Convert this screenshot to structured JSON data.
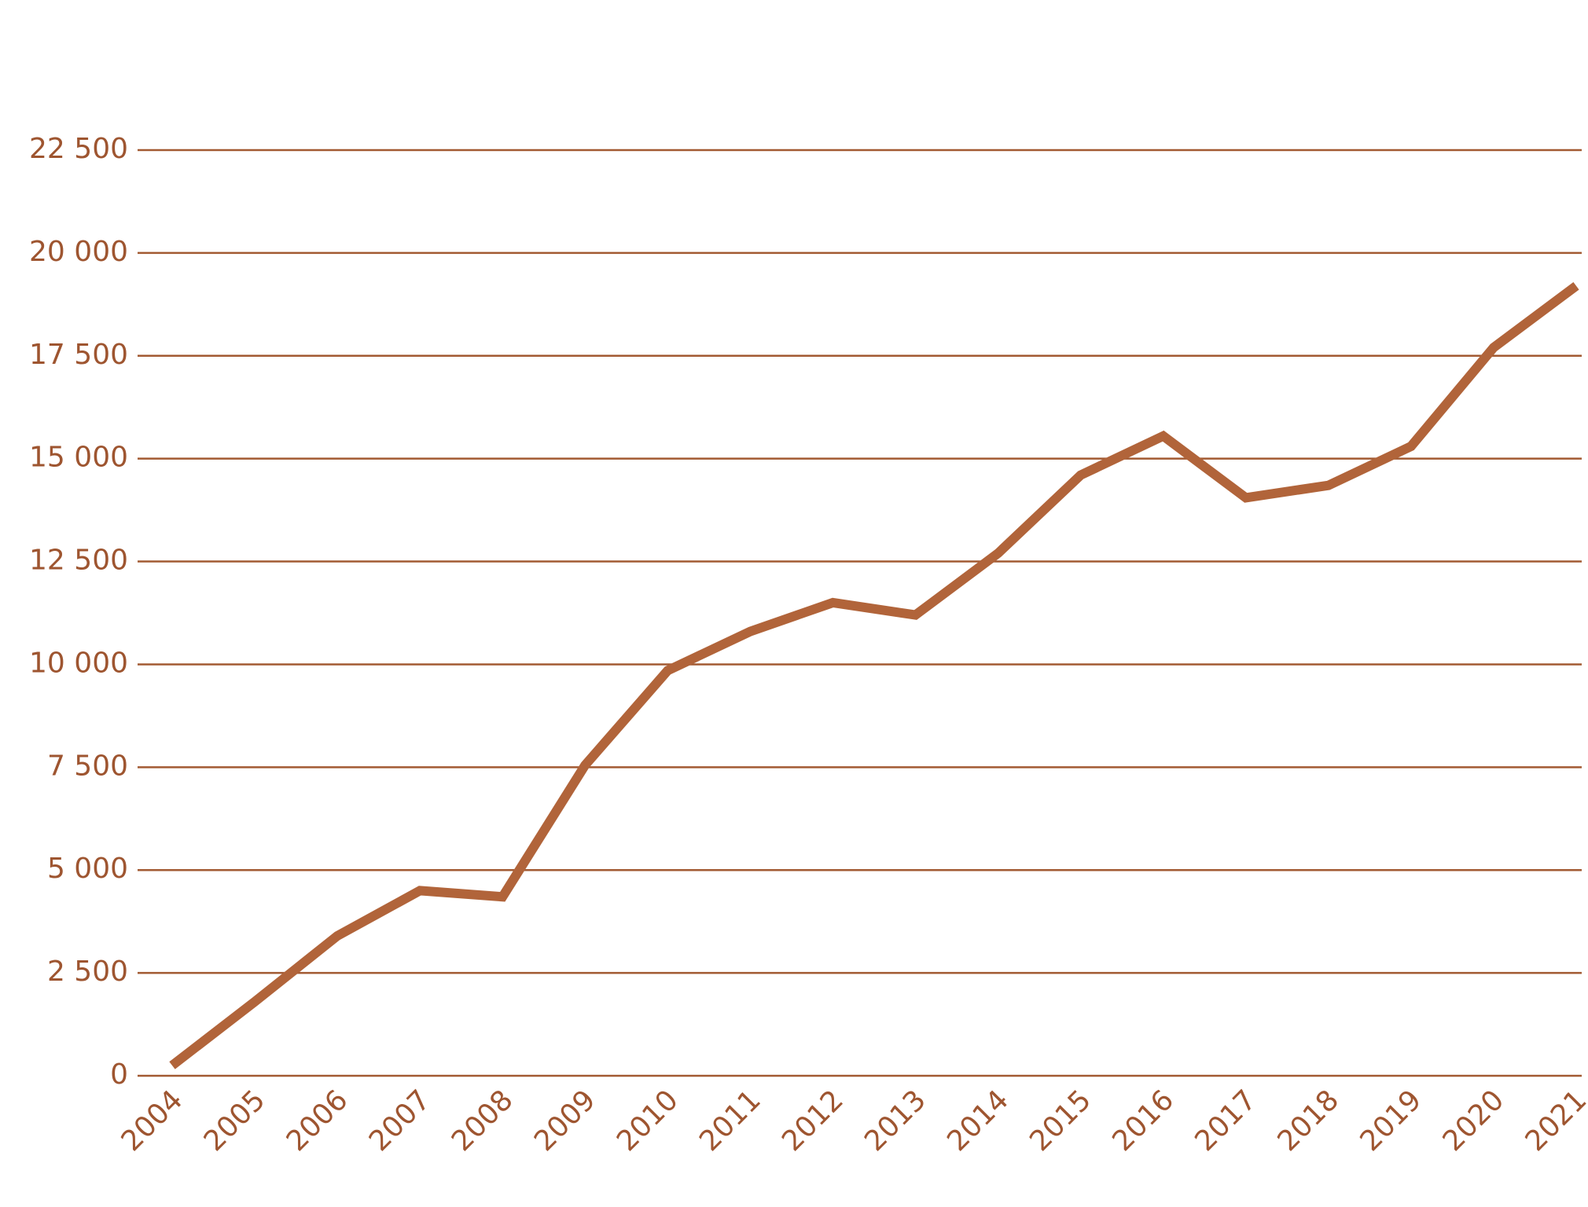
{
  "chart_data": {
    "type": "line",
    "categories": [
      "2004",
      "2005",
      "2006",
      "2007",
      "2008",
      "2009",
      "2010",
      "2011",
      "2012",
      "2013",
      "2014",
      "2015",
      "2016",
      "2017",
      "2018",
      "2019",
      "2020",
      "2021"
    ],
    "values": [
      250,
      1800,
      3400,
      4500,
      4350,
      7550,
      9850,
      10800,
      11500,
      11200,
      12700,
      14600,
      15550,
      14050,
      14350,
      15300,
      17700,
      19200
    ],
    "color": "#b1643a",
    "grid_color": "#a25a32",
    "label_color": "#9e5530",
    "ylim": [
      0,
      22500
    ],
    "yticks": [
      0,
      {
        "value": 2500,
        "label": "2 500"
      },
      {
        "value": 5000,
        "label": "5 000"
      },
      {
        "value": 7500,
        "label": "7 500"
      },
      {
        "value": 10000,
        "label": "10 000"
      },
      {
        "value": 12500,
        "label": "12 500"
      },
      {
        "value": 15000,
        "label": "15 000"
      },
      {
        "value": 17500,
        "label": "17 500"
      },
      {
        "value": 20000,
        "label": "20 000"
      },
      {
        "value": 22500,
        "label": "22 500"
      }
    ],
    "grid": true
  }
}
